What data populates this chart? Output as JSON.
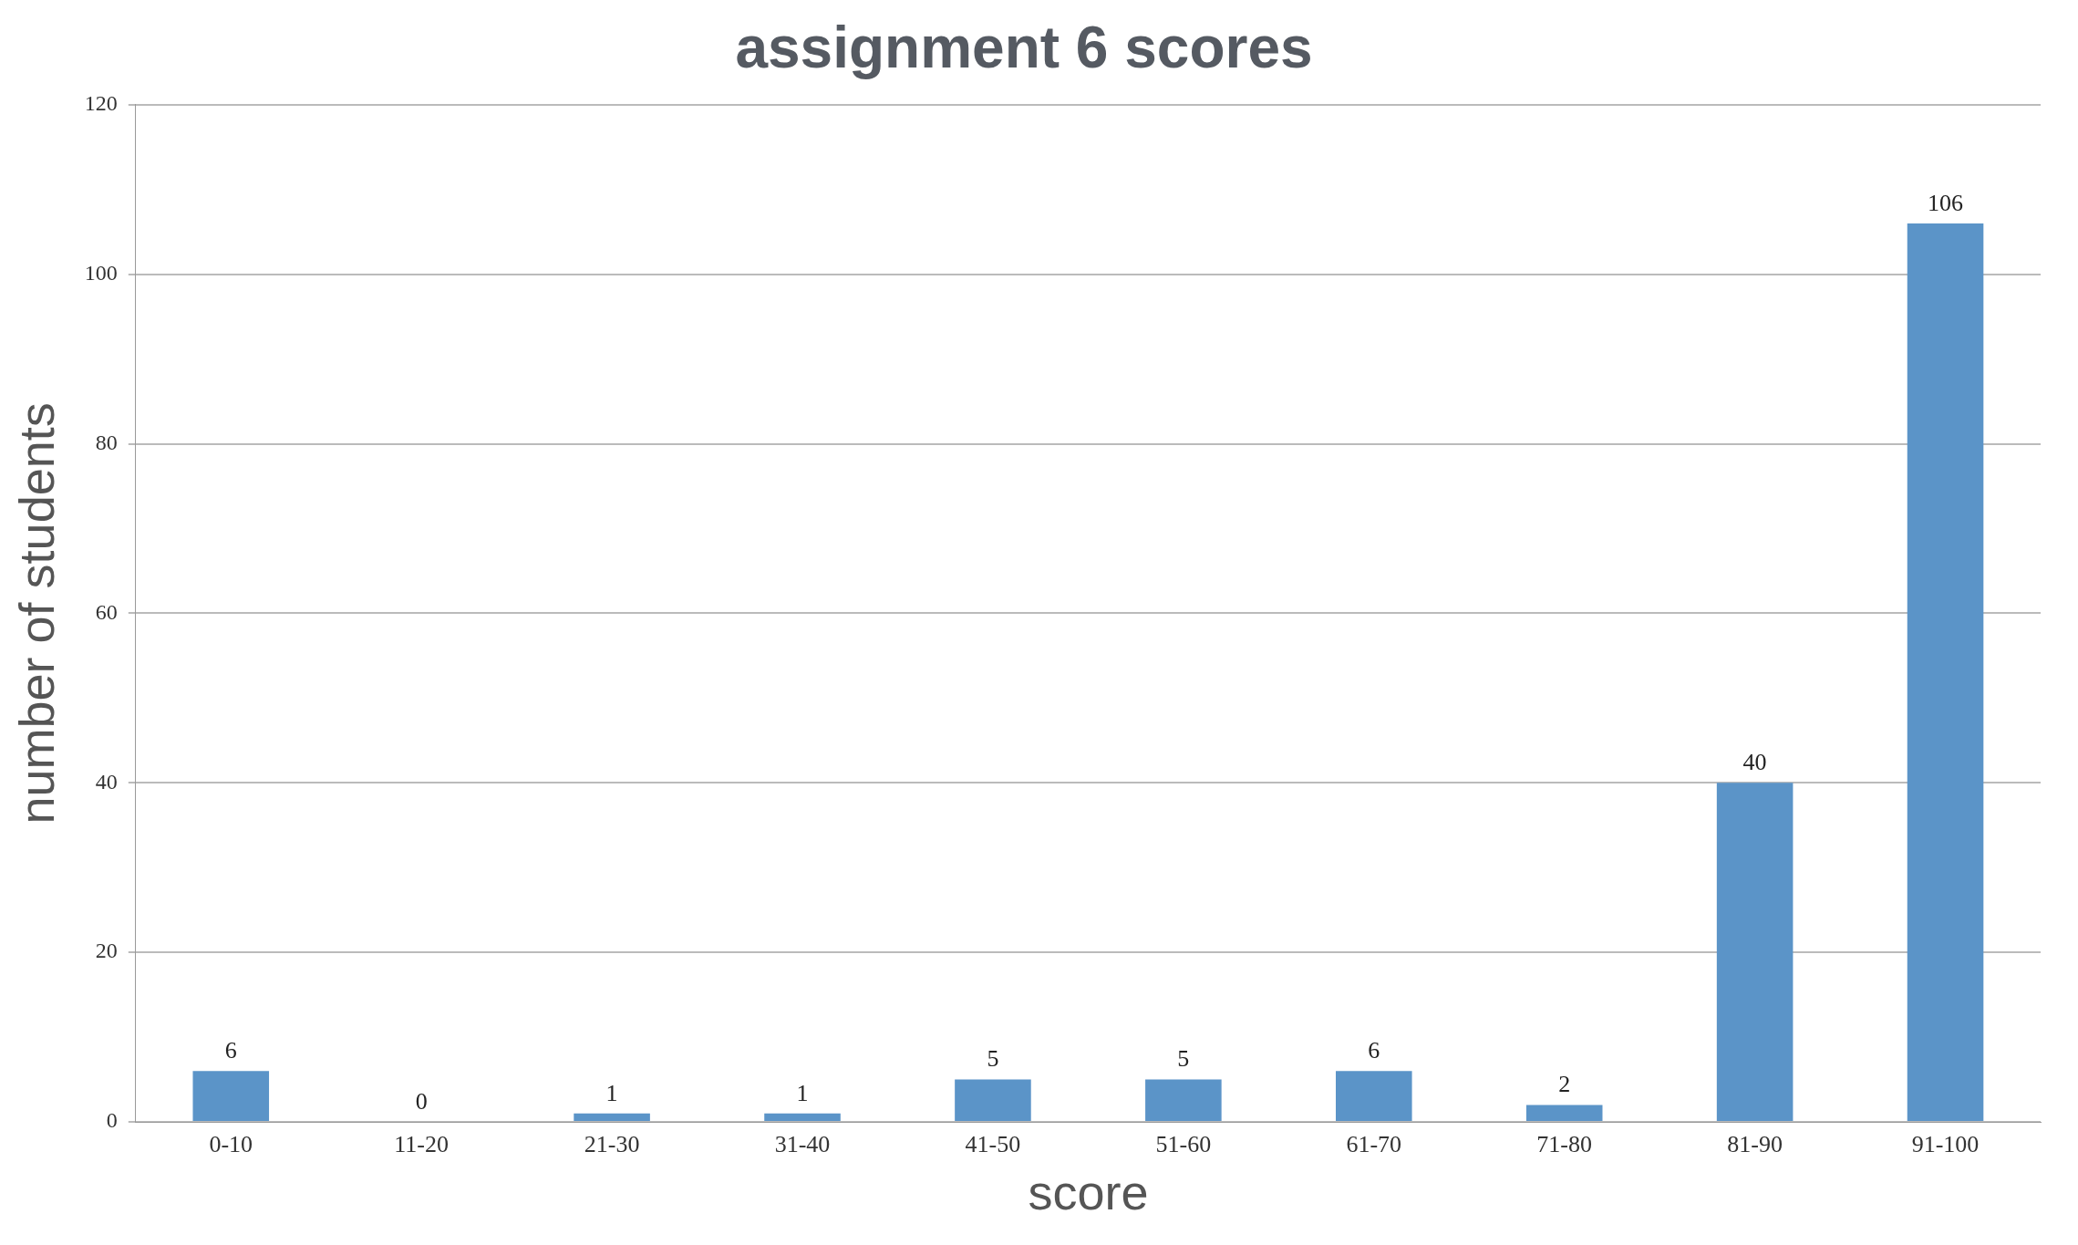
{
  "chart_data": {
    "type": "bar",
    "title": "assignment 6 scores",
    "xlabel": "score",
    "ylabel": "number of students",
    "categories": [
      "0-10",
      "11-20",
      "21-30",
      "31-40",
      "41-50",
      "51-60",
      "61-70",
      "71-80",
      "81-90",
      "91-100"
    ],
    "values": [
      6,
      0,
      1,
      1,
      5,
      5,
      6,
      2,
      40,
      106
    ],
    "color": "#5b94c8",
    "ylim": [
      0,
      120
    ],
    "yticks": [
      0,
      20,
      40,
      60,
      80,
      100,
      120
    ],
    "grid": "y",
    "data_labels": true,
    "legend": false
  }
}
